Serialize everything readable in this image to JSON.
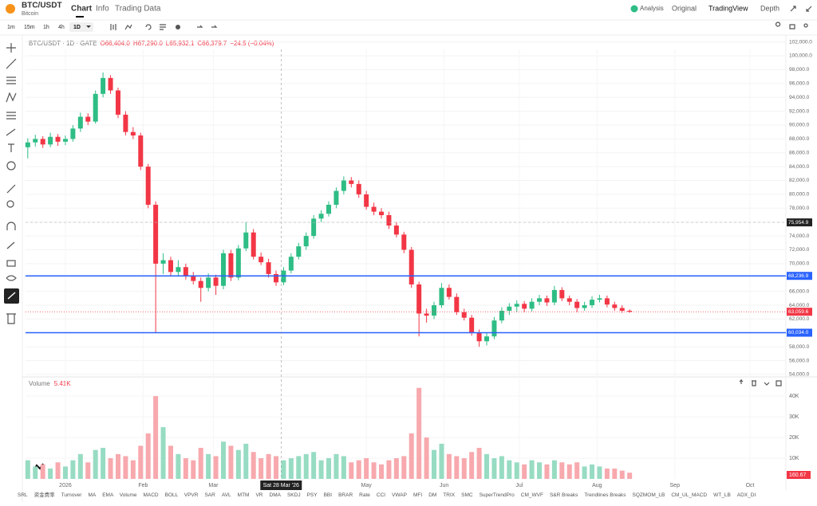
{
  "header": {
    "symbol": "BTC/USDT",
    "name": "Bitcoin",
    "tabs": [
      "Chart",
      "Info",
      "Trading Data"
    ],
    "right": [
      "Analysis",
      "Original",
      "TradingView",
      "Depth"
    ]
  },
  "toolbar": {
    "intervals": [
      "1m",
      "15m",
      "1h",
      "4h",
      "1D"
    ]
  },
  "indicators": [
    "SRL",
    "资金费率",
    "Turnover",
    "MA",
    "EMA",
    "Volume",
    "MACD",
    "BOLL",
    "VPVR",
    "SAR",
    "AVL",
    "MTM",
    "VR",
    "DMA",
    "SKDJ",
    "PSY",
    "BBI",
    "BRAR",
    "Rate",
    "CCI",
    "VWAP",
    "MFI",
    "DM",
    "TRIX",
    "SMC",
    "SuperTrendPro",
    "CM_WVF",
    "S&R Breaks",
    "Trendlines Breaks",
    "SQZMOM_LB",
    "CM_UL_MACD",
    "WT_LB",
    "ADX_DI"
  ],
  "chart_data": [
    {
      "type": "candlestick",
      "title": "BTC/USDT · 1D · GATE",
      "legend": [
        "O66,404.0",
        "H67,290.0",
        "L65,932.1",
        "C66,379.7",
        "−24.5 (−0.04%)"
      ],
      "up_color": "#2ebd85",
      "down_color": "#f23645",
      "grid": true,
      "x": [
        -15,
        -12,
        -9,
        -6,
        -3,
        0,
        3,
        6,
        9,
        12,
        15,
        18,
        21,
        24,
        27,
        30,
        33,
        36,
        39,
        42,
        45,
        48,
        51,
        54,
        57,
        60,
        63,
        66,
        69,
        72,
        75,
        78,
        81,
        84,
        87,
        90,
        93,
        96,
        99,
        102,
        105,
        108,
        111,
        114,
        117,
        120,
        123,
        126,
        129,
        132,
        135,
        138,
        141,
        144,
        147,
        150,
        153,
        156,
        159,
        162,
        165,
        168,
        171,
        174,
        177,
        180,
        183,
        186,
        189,
        192,
        195,
        198,
        201,
        204,
        207,
        210,
        213,
        216,
        219,
        222,
        225
      ],
      "open": [
        86800,
        87500,
        88000,
        87200,
        88300,
        87600,
        88000,
        89500,
        91200,
        90500,
        94500,
        96800,
        95000,
        91500,
        89000,
        88500,
        84000,
        78500,
        70000,
        70500,
        68800,
        69500,
        68200,
        67500,
        66500,
        68000,
        66800,
        71500,
        68000,
        72200,
        74500,
        71000,
        70200,
        68500,
        67300,
        69000,
        71000,
        72500,
        74000,
        76500,
        77200,
        78500,
        80500,
        82000,
        81500,
        80000,
        78200,
        77500,
        77000,
        75500,
        74200,
        72000,
        67000,
        62800,
        62500,
        64000,
        66500,
        65200,
        63000,
        62200,
        60000,
        58800,
        59500,
        61800,
        63200,
        63800,
        64200,
        63500,
        64500,
        65000,
        64400,
        66200,
        65000,
        64500,
        63600,
        64000,
        64800,
        65000,
        64100,
        63600,
        63200
      ],
      "high": [
        88100,
        88600,
        88400,
        88900,
        88700,
        88500,
        90000,
        91800,
        91700,
        95000,
        97600,
        97200,
        95400,
        92000,
        89700,
        88900,
        84400,
        79000,
        71500,
        71000,
        70500,
        70000,
        68800,
        68000,
        68600,
        68400,
        72000,
        72000,
        72700,
        76000,
        75000,
        71600,
        70700,
        69000,
        69500,
        71500,
        73000,
        74500,
        77000,
        77700,
        79000,
        81000,
        82600,
        82500,
        82000,
        80500,
        78800,
        78000,
        77500,
        76000,
        74600,
        72400,
        67400,
        63500,
        64500,
        67200,
        67000,
        65700,
        63500,
        62600,
        60500,
        60000,
        62300,
        63700,
        64300,
        64700,
        64600,
        65000,
        65500,
        65400,
        66800,
        66600,
        65400,
        64900,
        64500,
        65300,
        65500,
        65400,
        64500,
        64000,
        63400
      ],
      "low": [
        85200,
        86900,
        86700,
        86800,
        87000,
        87100,
        87600,
        89000,
        90000,
        90200,
        94000,
        94500,
        91000,
        88500,
        88000,
        83500,
        78000,
        60000,
        68500,
        68300,
        68200,
        67700,
        67000,
        64500,
        66000,
        65500,
        66300,
        67500,
        67600,
        71800,
        70600,
        69800,
        68000,
        66800,
        66900,
        68600,
        70600,
        72000,
        73600,
        76000,
        76800,
        78000,
        80000,
        81000,
        79500,
        77800,
        77000,
        76500,
        75000,
        73800,
        71500,
        66500,
        59500,
        61500,
        62000,
        63600,
        64800,
        62600,
        61800,
        59600,
        58000,
        58200,
        59100,
        61400,
        62600,
        63000,
        63000,
        63100,
        64000,
        63900,
        64000,
        64600,
        64000,
        63000,
        63200,
        63600,
        64400,
        63700,
        63200,
        62900,
        62900
      ],
      "close": [
        87500,
        88000,
        87200,
        88300,
        87600,
        88000,
        89500,
        91200,
        90500,
        94500,
        96800,
        95000,
        91500,
        89000,
        88500,
        84000,
        78500,
        70000,
        70500,
        68800,
        69500,
        68200,
        67500,
        66500,
        68000,
        66800,
        71500,
        68000,
        72200,
        74500,
        71000,
        70200,
        68500,
        67300,
        69000,
        71000,
        72500,
        74000,
        76500,
        77200,
        78500,
        80500,
        82000,
        81500,
        80000,
        78200,
        77500,
        77000,
        75500,
        74200,
        72000,
        67000,
        62800,
        62500,
        64000,
        66500,
        65200,
        63000,
        62200,
        60000,
        58800,
        59500,
        61800,
        63200,
        63800,
        64200,
        63500,
        64500,
        65000,
        64400,
        66200,
        65000,
        64500,
        63600,
        64000,
        64800,
        65000,
        64100,
        63600,
        63200,
        63060
      ],
      "xlim": [
        -15.9,
        287.3
      ],
      "xticks": [
        {
          "value": 0,
          "label": "2026"
        },
        {
          "value": 31,
          "label": "Feb"
        },
        {
          "value": 59,
          "label": "Mar"
        },
        {
          "value": 120,
          "label": "May"
        },
        {
          "value": 151,
          "label": "Jun"
        },
        {
          "value": 181,
          "label": "Jul"
        },
        {
          "value": 212,
          "label": "Aug"
        },
        {
          "value": 243,
          "label": "Sep"
        },
        {
          "value": 273,
          "label": "Oct"
        }
      ],
      "ylim": [
        53770,
        102875
      ],
      "yticks": [
        {
          "value": 54000,
          "label": "54,000.0"
        },
        {
          "value": 56000,
          "label": "56,000.0"
        },
        {
          "value": 58000,
          "label": "58,000.0"
        },
        {
          "value": 60000,
          "label": "60,000.0"
        },
        {
          "value": 62000,
          "label": "62,000.0"
        },
        {
          "value": 64000,
          "label": "64,000.0"
        },
        {
          "value": 66000,
          "label": "66,000.0"
        },
        {
          "value": 68000,
          "label": "68,000.0"
        },
        {
          "value": 70000,
          "label": "70,000.0"
        },
        {
          "value": 72000,
          "label": "72,000.0"
        },
        {
          "value": 74000,
          "label": "74,000.0"
        },
        {
          "value": 76000,
          "label": "76,000.0"
        },
        {
          "value": 78000,
          "label": "78,000.0"
        },
        {
          "value": 80000,
          "label": "80,000.0"
        },
        {
          "value": 82000,
          "label": "82,000.0"
        },
        {
          "value": 84000,
          "label": "84,000.0"
        },
        {
          "value": 86000,
          "label": "86,000.0"
        },
        {
          "value": 88000,
          "label": "88,000.0"
        },
        {
          "value": 90000,
          "label": "90,000.0"
        },
        {
          "value": 92000,
          "label": "92,000.0"
        },
        {
          "value": 94000,
          "label": "94,000.0"
        },
        {
          "value": 96000,
          "label": "96,000.0"
        },
        {
          "value": 98000,
          "label": "98,000.0"
        },
        {
          "value": 100000,
          "label": "100,000.0"
        },
        {
          "value": 102000,
          "label": "102,000.0"
        }
      ],
      "lines": [
        {
          "value": 68236.9,
          "label": "68,236.9",
          "color": "#2962ff"
        },
        {
          "value": 60034.0,
          "label": "60,034.0",
          "color": "#2962ff"
        }
      ],
      "last": {
        "value": 63059.6,
        "label": "63,059.6",
        "color": "#f23645"
      },
      "crosshair": {
        "x": 86,
        "x_label": "Sat 28 Mar '26",
        "value": 75954.9,
        "label": "75,954.9"
      }
    },
    {
      "type": "bar",
      "title": "Volume",
      "legend_value": "5.41K",
      "axis_label": "160.67",
      "values": [
        9000,
        6000,
        7000,
        5000,
        8000,
        6000,
        9000,
        12000,
        8000,
        14000,
        15000,
        10000,
        12000,
        11000,
        9000,
        16000,
        22000,
        40000,
        25000,
        16000,
        12000,
        10000,
        9000,
        15000,
        12000,
        11000,
        18000,
        16000,
        14000,
        17000,
        13000,
        10000,
        12000,
        11000,
        9000,
        10000,
        11000,
        12000,
        13000,
        9000,
        10000,
        12000,
        11000,
        8000,
        9000,
        10000,
        8000,
        7000,
        9000,
        10000,
        11000,
        22000,
        44000,
        20000,
        14000,
        17000,
        12000,
        11000,
        10000,
        13000,
        15000,
        12000,
        10000,
        11000,
        9000,
        8000,
        7000,
        9000,
        8000,
        7000,
        9000,
        8000,
        7000,
        8000,
        6000,
        7000,
        6000,
        5000,
        5000,
        4000,
        3000
      ],
      "up_color": "#97dcc2",
      "down_color": "#f7a9ae",
      "ylim": [
        0,
        43500
      ],
      "yticks": [
        {
          "value": 10000,
          "label": "10K"
        },
        {
          "value": 20000,
          "label": "20K"
        },
        {
          "value": 30000,
          "label": "30K"
        },
        {
          "value": 40000,
          "label": "40K"
        }
      ]
    }
  ]
}
